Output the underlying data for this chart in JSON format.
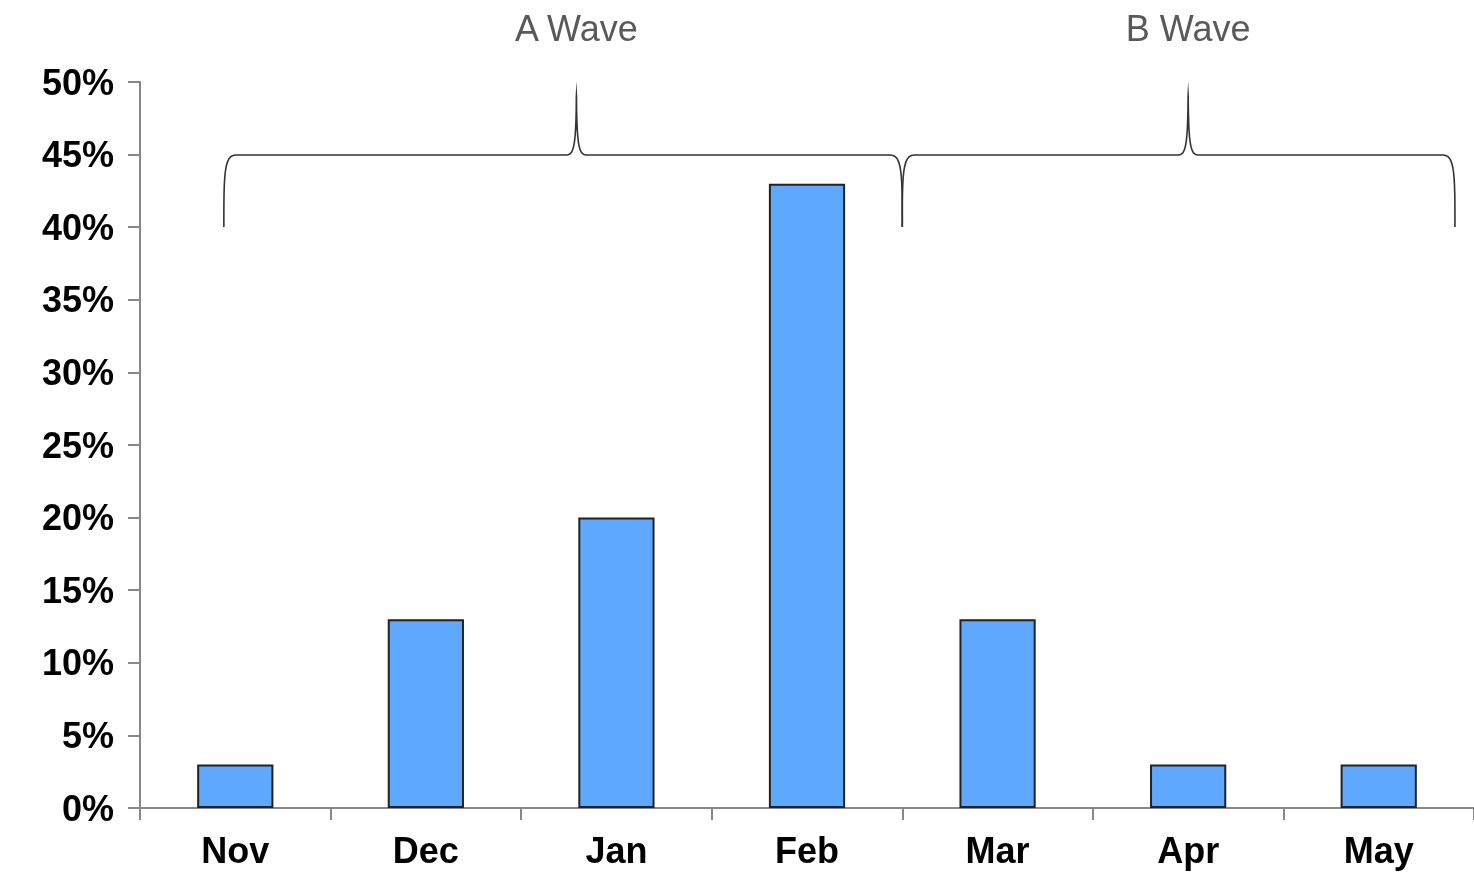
{
  "chart_data": {
    "type": "bar",
    "categories": [
      "Nov",
      "Dec",
      "Jan",
      "Feb",
      "Mar",
      "Apr",
      "May"
    ],
    "values": [
      3,
      13,
      20,
      43,
      13,
      3,
      3
    ],
    "color": "#5fa8ff",
    "ylim": [
      0,
      50
    ],
    "yticks": [
      {
        "value": 0,
        "label": "0%"
      },
      {
        "value": 5,
        "label": "5%"
      },
      {
        "value": 10,
        "label": "10%"
      },
      {
        "value": 15,
        "label": "15%"
      },
      {
        "value": 20,
        "label": "20%"
      },
      {
        "value": 25,
        "label": "25%"
      },
      {
        "value": 30,
        "label": "30%"
      },
      {
        "value": 35,
        "label": "35%"
      },
      {
        "value": 40,
        "label": "40%"
      },
      {
        "value": 45,
        "label": "45%"
      },
      {
        "value": 50,
        "label": "50%"
      }
    ],
    "grid": false,
    "annotations": [
      "A Wave",
      "B Wave"
    ]
  }
}
